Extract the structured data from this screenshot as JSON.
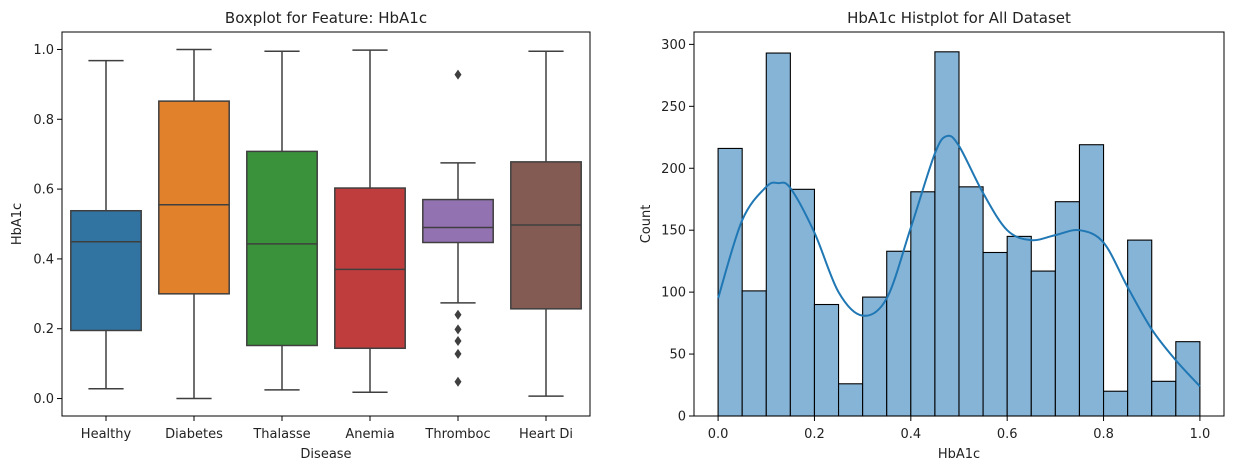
{
  "chart_data": [
    {
      "type": "box",
      "title": "Boxplot for Feature: HbA1c",
      "xlabel": "Disease",
      "ylabel": "HbA1c",
      "ylim": [
        -0.05,
        1.05
      ],
      "yticks": [
        "0.0",
        "0.2",
        "0.4",
        "0.6",
        "0.8",
        "1.0"
      ],
      "categories": [
        "Healthy",
        "Diabetes",
        "Thalasse",
        "Anemia",
        "Thromboc",
        "Heart Di"
      ],
      "boxes": [
        {
          "category": "Healthy",
          "whisker_low": 0.028,
          "q1": 0.195,
          "median": 0.449,
          "q3": 0.538,
          "whisker_high": 0.968,
          "outliers": [],
          "color": "#3274a1"
        },
        {
          "category": "Diabetes",
          "whisker_low": 0.0,
          "q1": 0.3,
          "median": 0.555,
          "q3": 0.852,
          "whisker_high": 1.0,
          "outliers": [],
          "color": "#e1812c"
        },
        {
          "category": "Thalasse",
          "whisker_low": 0.025,
          "q1": 0.152,
          "median": 0.443,
          "q3": 0.708,
          "whisker_high": 0.995,
          "outliers": [],
          "color": "#3a923a"
        },
        {
          "category": "Anemia",
          "whisker_low": 0.018,
          "q1": 0.144,
          "median": 0.37,
          "q3": 0.603,
          "whisker_high": 0.998,
          "outliers": [],
          "color": "#c03d3e"
        },
        {
          "category": "Thromboc",
          "whisker_low": 0.274,
          "q1": 0.447,
          "median": 0.49,
          "q3": 0.57,
          "whisker_high": 0.675,
          "outliers": [
            0.928,
            0.24,
            0.198,
            0.165,
            0.128,
            0.048
          ],
          "color": "#9372b2"
        },
        {
          "category": "Heart Di",
          "whisker_low": 0.007,
          "q1": 0.257,
          "median": 0.497,
          "q3": 0.678,
          "whisker_high": 0.995,
          "outliers": [],
          "color": "#845b53"
        }
      ]
    },
    {
      "type": "histogram",
      "title": "HbA1c Histplot for All Dataset",
      "xlabel": "HbA1c",
      "ylabel": "Count",
      "xlim": [
        -0.05,
        1.05
      ],
      "ylim": [
        0,
        310
      ],
      "xticks": [
        "0.0",
        "0.2",
        "0.4",
        "0.6",
        "0.8",
        "1.0"
      ],
      "yticks": [
        "0",
        "50",
        "100",
        "150",
        "200",
        "250",
        "300"
      ],
      "bin_edges": [
        0.0,
        0.05,
        0.1,
        0.15,
        0.2,
        0.25,
        0.3,
        0.35,
        0.4,
        0.45,
        0.5,
        0.55,
        0.6,
        0.65,
        0.7,
        0.75,
        0.8,
        0.85,
        0.9,
        0.95,
        1.0
      ],
      "counts": [
        216,
        101,
        293,
        183,
        90,
        26,
        96,
        133,
        181,
        294,
        185,
        132,
        145,
        117,
        173,
        219,
        20,
        142,
        28,
        60
      ],
      "kde": {
        "x": [
          0.0,
          0.05,
          0.1,
          0.125,
          0.15,
          0.2,
          0.25,
          0.3,
          0.35,
          0.4,
          0.45,
          0.475,
          0.5,
          0.55,
          0.6,
          0.65,
          0.7,
          0.75,
          0.8,
          0.85,
          0.9,
          0.95,
          1.0
        ],
        "y": [
          95,
          158,
          185,
          188,
          184,
          148,
          100,
          81,
          95,
          152,
          212,
          226,
          218,
          180,
          150,
          142,
          146,
          150,
          140,
          104,
          70,
          45,
          24
        ]
      },
      "bar_color": "#86b4d7",
      "kde_color": "#1f77b4"
    }
  ]
}
